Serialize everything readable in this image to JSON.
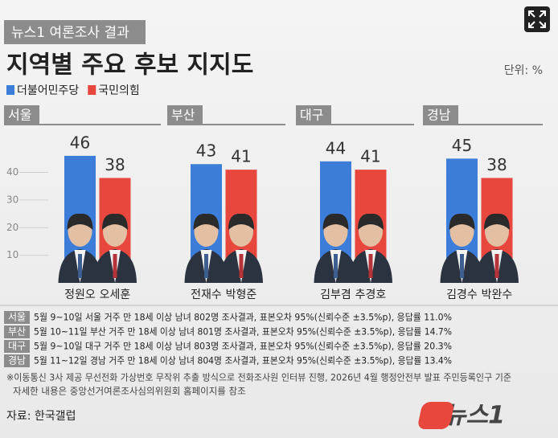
{
  "header": {
    "tag": "뉴스1 여론조사 결과",
    "title": "지역별 주요 후보 지지도",
    "unit": "단위: %"
  },
  "legend": [
    {
      "name": "더불어민주당",
      "color": "#3b7dd8"
    },
    {
      "name": "국민의힘",
      "color": "#e8473e"
    }
  ],
  "chart_data": [
    {
      "type": "bar",
      "title": "서울",
      "categories": [
        "정원오",
        "오세훈"
      ],
      "values": [
        46,
        38
      ],
      "colors": [
        "#3b7dd8",
        "#e8473e"
      ],
      "ylim": [
        0,
        55
      ],
      "yticks": [
        10,
        20,
        30,
        40
      ]
    },
    {
      "type": "bar",
      "title": "부산",
      "categories": [
        "전재수",
        "박형준"
      ],
      "values": [
        43,
        41
      ],
      "colors": [
        "#3b7dd8",
        "#e8473e"
      ],
      "ylim": [
        0,
        55
      ]
    },
    {
      "type": "bar",
      "title": "대구",
      "categories": [
        "김부겸",
        "추경호"
      ],
      "values": [
        44,
        41
      ],
      "colors": [
        "#3b7dd8",
        "#e8473e"
      ],
      "ylim": [
        0,
        55
      ]
    },
    {
      "type": "bar",
      "title": "경남",
      "categories": [
        "김경수",
        "박완수"
      ],
      "values": [
        45,
        38
      ],
      "colors": [
        "#3b7dd8",
        "#e8473e"
      ],
      "ylim": [
        0,
        55
      ]
    }
  ],
  "notes": {
    "rows": [
      {
        "region": "서울",
        "text": "5월 9~10일 서울 거주 만 18세 이상 남녀 802명 조사결과, 표본오차 95%(신뢰수준 ±3.5%p), 응답률 11.0%"
      },
      {
        "region": "부산",
        "text": "5월 10~11일 부산 거주 만 18세 이상 남녀 801명 조사결과, 표본오차 95%(신뢰수준 ±3.5%p), 응답률 14.7%"
      },
      {
        "region": "대구",
        "text": "5월 9~10일 대구 거주 만 18세 이상 남녀 803명 조사결과, 표본오차 95%(신뢰수준 ±3.5%p), 응답률 20.3%"
      },
      {
        "region": "경남",
        "text": "5월 11~12일 경남 거주 만 18세 이상 남녀 804명 조사결과, 표본오차 95%(신뢰수준 ±3.5%p), 응답률 13.4%"
      }
    ],
    "lines": [
      "※이동통신 3사 제공 무선전화 가상번호 무작위 추출 방식으로 전화조사원 인터뷰 진행, 2026년 4월 행정안전부 발표 주민등록인구 기준",
      "자세한 내용은 중앙선거여론조사심의위원회 홈페이지를 참조"
    ]
  },
  "source": "자료: 한국갤럽",
  "logo": "뉴스1"
}
